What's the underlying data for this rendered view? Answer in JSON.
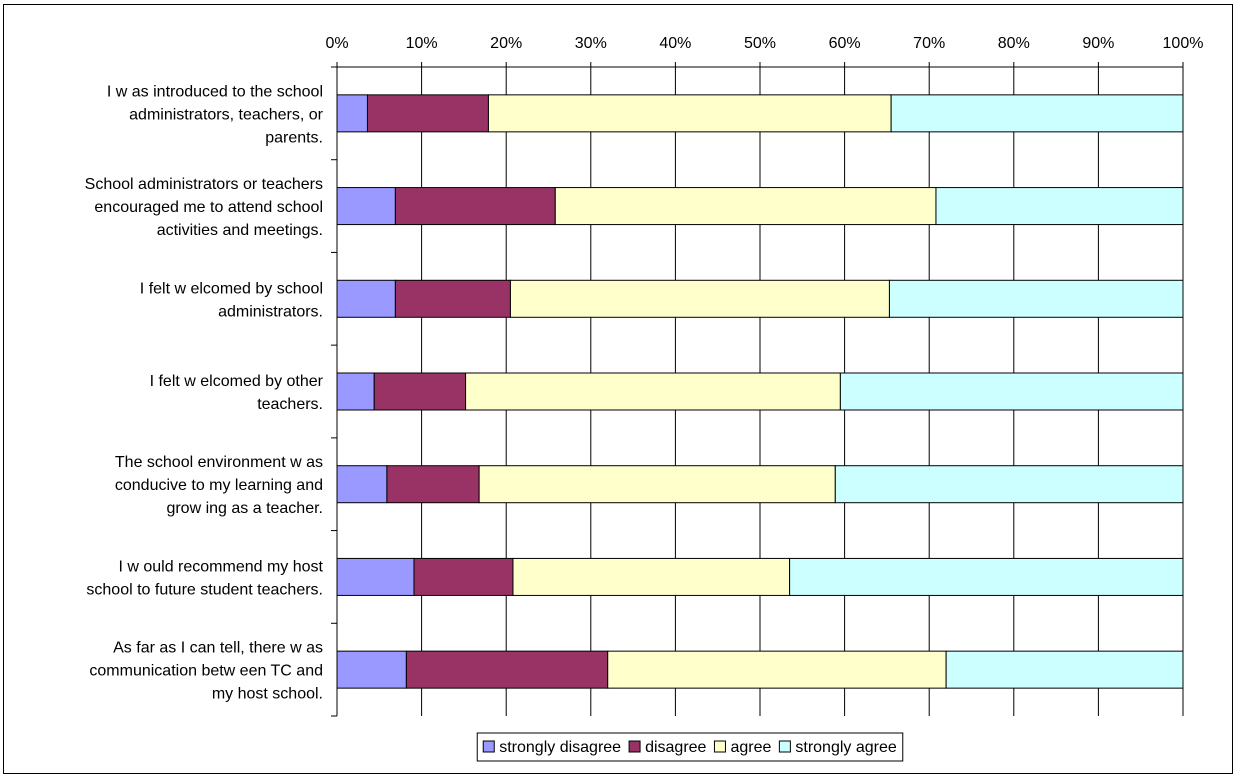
{
  "chart_data": {
    "type": "bar",
    "orientation": "horizontal",
    "stacking": "percent",
    "categories": [
      "I w as introduced to the school administrators, teachers, or parents.",
      "School administrators or teachers encouraged me to attend school activities and meetings.",
      "I felt w elcomed by school administrators.",
      "I felt w elcomed by other teachers.",
      "The school environment w as conducive to my learning and grow ing as a teacher.",
      "I w ould recommend my host school to future student teachers.",
      "As far as I can tell, there w as communication betw een TC and my host school."
    ],
    "category_lines": [
      [
        "I w as introduced to the school",
        "administrators, teachers, or",
        "parents."
      ],
      [
        "School administrators or teachers",
        "encouraged me to attend school",
        "activities and meetings."
      ],
      [
        "I felt w elcomed by school",
        "administrators."
      ],
      [
        "I felt w elcomed by other",
        "teachers."
      ],
      [
        "The school environment w as",
        "conducive to my learning and",
        "grow ing as a teacher."
      ],
      [
        "I w ould recommend my host",
        "school to future student teachers."
      ],
      [
        "As far as I can tell, there w as",
        "communication betw een TC and",
        "my host school."
      ]
    ],
    "series": [
      {
        "name": "strongly disagree",
        "color": "#9999ff",
        "values": [
          3.6,
          6.9,
          6.9,
          4.4,
          5.9,
          9.1,
          8.2
        ]
      },
      {
        "name": "disagree",
        "color": "#993366",
        "values": [
          14.3,
          18.9,
          13.6,
          10.8,
          10.9,
          11.7,
          23.8
        ]
      },
      {
        "name": "agree",
        "color": "#ffffcc",
        "values": [
          47.6,
          45.0,
          44.8,
          44.3,
          42.1,
          32.7,
          40.0
        ]
      },
      {
        "name": "strongly agree",
        "color": "#ccffff",
        "values": [
          34.5,
          29.2,
          34.7,
          40.5,
          41.1,
          46.5,
          28.0
        ]
      }
    ],
    "x_ticks": [
      "0%",
      "10%",
      "20%",
      "30%",
      "40%",
      "50%",
      "60%",
      "70%",
      "80%",
      "90%",
      "100%"
    ],
    "xlim": [
      0,
      100
    ],
    "title": "",
    "xlabel": "",
    "ylabel": "",
    "grid": true,
    "legend_position": "bottom"
  }
}
